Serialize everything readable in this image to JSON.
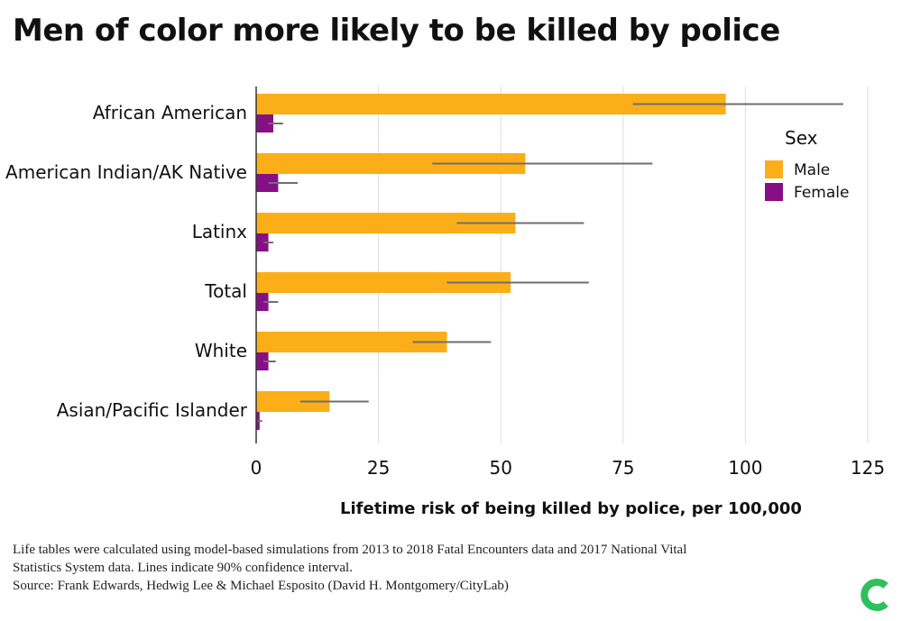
{
  "title": "Men of color more likely to be killed by police",
  "chart_data": {
    "type": "bar",
    "orientation": "horizontal",
    "title": "Men of color more likely to be killed by police",
    "xlabel": "Lifetime risk of being killed by police, per 100,000",
    "ylabel": "",
    "xlim": [
      0,
      125
    ],
    "xticks": [
      0,
      25,
      50,
      75,
      100,
      125
    ],
    "grid": "vertical",
    "legend": {
      "title": "Sex",
      "position": "right"
    },
    "categories": [
      "African American",
      "American Indian/AK Native",
      "Latinx",
      "Total",
      "White",
      "Asian/Pacific Islander"
    ],
    "series": [
      {
        "name": "Male",
        "color": "#FBAE17",
        "values": [
          96,
          55,
          53,
          52,
          39,
          15
        ],
        "ci_low": [
          77,
          36,
          41,
          39,
          32,
          9
        ],
        "ci_high": [
          120,
          81,
          67,
          68,
          48,
          23
        ]
      },
      {
        "name": "Female",
        "color": "#870F85",
        "values": [
          3.5,
          4.5,
          2.5,
          2.5,
          2.5,
          0.7
        ],
        "ci_low": [
          2.5,
          2.5,
          1.5,
          1.5,
          1.5,
          0.3
        ],
        "ci_high": [
          5.5,
          8.5,
          3.5,
          4.5,
          4,
          1.2
        ]
      }
    ]
  },
  "notes": {
    "line1": "Life tables were calculated using model-based simulations from 2013 to 2018 Fatal Encounters data and 2017 National Vital",
    "line2": "Statistics System data. Lines indicate 90% confidence interval.",
    "line3": "Source: Frank Edwards, Hedwig Lee & Michael Esposito (David H. Montgomery/CityLab)"
  },
  "logo": {
    "name": "citylab-logo-icon",
    "color": "#2FBF5C"
  }
}
